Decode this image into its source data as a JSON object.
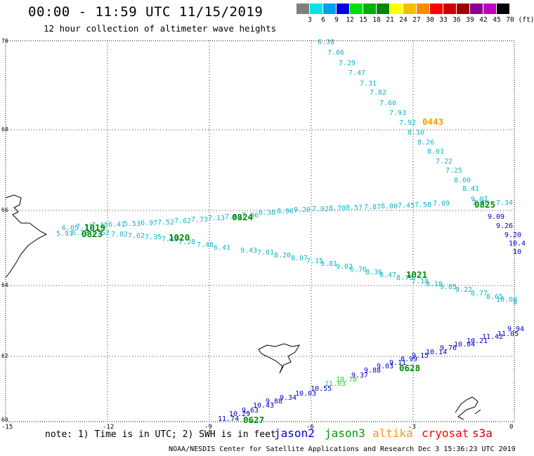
{
  "title": "00:00 - 11:59 UTC 11/15/2019",
  "subtitle": "12 hour collection of altimeter wave heights",
  "scale": {
    "labels": [
      "3",
      "6",
      "9",
      "12",
      "15",
      "18",
      "21",
      "24",
      "27",
      "30",
      "33",
      "36",
      "39",
      "42",
      "45",
      "70",
      "(ft)"
    ],
    "colors": [
      "#7f7f7f",
      "#00e5e5",
      "#00a0f0",
      "#0000e0",
      "#00e000",
      "#00b000",
      "#008800",
      "#ffff00",
      "#f0c000",
      "#ff8800",
      "#ff0000",
      "#d00000",
      "#a00000",
      "#900090",
      "#c000c0",
      "#000000"
    ]
  },
  "axes": {
    "lat_labels": [
      "70",
      "68",
      "66",
      "64",
      "62",
      "60"
    ],
    "lon_labels": [
      "-15",
      "-12",
      "-9",
      "-6",
      "-3",
      "0"
    ]
  },
  "note": "note: 1) Time is in UTC; 2) SWH is in feet",
  "satellites": [
    {
      "name": "jason2",
      "color": "#0000dd"
    },
    {
      "name": "jason3",
      "color": "#009900"
    },
    {
      "name": "altika",
      "color": "#ff9900"
    },
    {
      "name": "cryosat",
      "color": "#ff0000"
    },
    {
      "name": "s3a",
      "color": "#cc0000"
    }
  ],
  "credit": "NOAA/NESDIS Center for Satellite Applications and Research   Dec  3 15:36:23 UTC 2019",
  "tracks": [
    {
      "name": "track-a",
      "color": "#0fb4cc",
      "values": [
        "6.38",
        "7.06",
        "7.29",
        "7.47",
        "7.31",
        "7.82",
        "7.60",
        "7.93",
        "7.92",
        "8.10",
        "8.26",
        "8.01",
        "7.22",
        "7.25",
        "8.00",
        "8.41",
        "9.07"
      ]
    },
    {
      "name": "track-a-tail",
      "color": "#0000cc",
      "values": [
        "9.09",
        "9.26",
        "9.20",
        "10.4",
        "10"
      ]
    },
    {
      "name": "track-b",
      "color": "#0fb4cc",
      "values": [
        "6.05",
        "7.11",
        "7.15",
        "6.41",
        "5.53",
        "6.97",
        "7.52",
        "7.62",
        "7.73",
        "7.13",
        "7.69",
        "7.96",
        "8.38",
        "8.96",
        "9.20",
        "7.92",
        "8.70",
        "8.57",
        "7.87",
        "8.00",
        "7.45",
        "7.58",
        "7.09",
        "7.48",
        "7.34"
      ]
    },
    {
      "name": "track-c",
      "color": "#0fb4cc",
      "values": [
        "5.91",
        "6.72",
        "6.52",
        "7.02",
        "7.62",
        "7.35",
        "7.12",
        "7.28",
        "7.48",
        "6.41",
        "9.43",
        "7.01",
        "8.20",
        "8.07",
        "7.15",
        "9.81",
        "9.02",
        "6.76",
        "8.36",
        "8.47",
        "8.75",
        "7.18",
        "8.18",
        "9.05",
        "9.22",
        "8.77",
        "8.65",
        "10.08",
        "9"
      ]
    },
    {
      "name": "track-d",
      "color": "#0000cc",
      "values": [
        "11.74",
        "10.29",
        "9.63",
        "10.43",
        "9.88",
        "9.34",
        "10.03",
        "10.55",
        "11.03",
        "10.78",
        "9.37",
        "9.88",
        "9.03",
        "9.11",
        "8.99",
        "9.15",
        "10.14",
        "9.76",
        "10.04",
        "10.21",
        "11.42",
        "11.05",
        "9.94"
      ]
    }
  ],
  "time_labels": [
    {
      "text": "0443",
      "color": "#ff9900"
    },
    {
      "text": "0825",
      "color": "#008800"
    },
    {
      "text": "0824",
      "color": "#008800"
    },
    {
      "text": "1019",
      "color": "#008800"
    },
    {
      "text": "0823",
      "color": "#008800"
    },
    {
      "text": "1020",
      "color": "#008800"
    },
    {
      "text": "1021",
      "color": "#008800"
    },
    {
      "text": "0628",
      "color": "#008800"
    },
    {
      "text": "0627",
      "color": "#008800"
    }
  ]
}
